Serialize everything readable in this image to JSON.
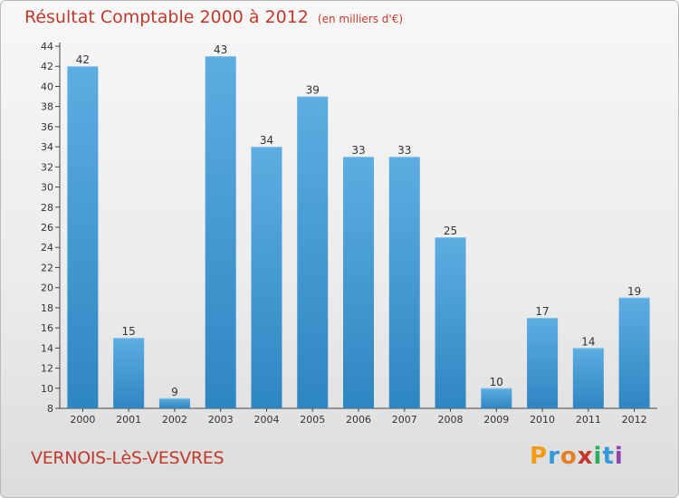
{
  "title": "Résultat Comptable 2000 à 2012",
  "unit": "(en milliers d'€)",
  "commune": "VERNOIS-LèS-VESVRES",
  "brand": "Proxiti",
  "colors": {
    "accent": "#c0392b",
    "bar_light": "#5dade2",
    "bar_dark": "#2e86c1",
    "axis": "#444444"
  },
  "chart_data": {
    "type": "bar",
    "title": "Résultat Comptable 2000 à 2012",
    "subtitle": "(en milliers d'€)",
    "xlabel": "",
    "ylabel": "",
    "categories": [
      "2000",
      "2001",
      "2002",
      "2003",
      "2004",
      "2005",
      "2006",
      "2007",
      "2008",
      "2009",
      "2010",
      "2011",
      "2012"
    ],
    "values": [
      42,
      15,
      9,
      43,
      34,
      39,
      33,
      33,
      25,
      10,
      17,
      14,
      19
    ],
    "ylim": [
      8,
      44
    ],
    "yticks": [
      8,
      10,
      12,
      14,
      16,
      18,
      20,
      22,
      24,
      26,
      28,
      30,
      32,
      34,
      36,
      38,
      40,
      42,
      44
    ],
    "grid": false,
    "legend": "none"
  }
}
